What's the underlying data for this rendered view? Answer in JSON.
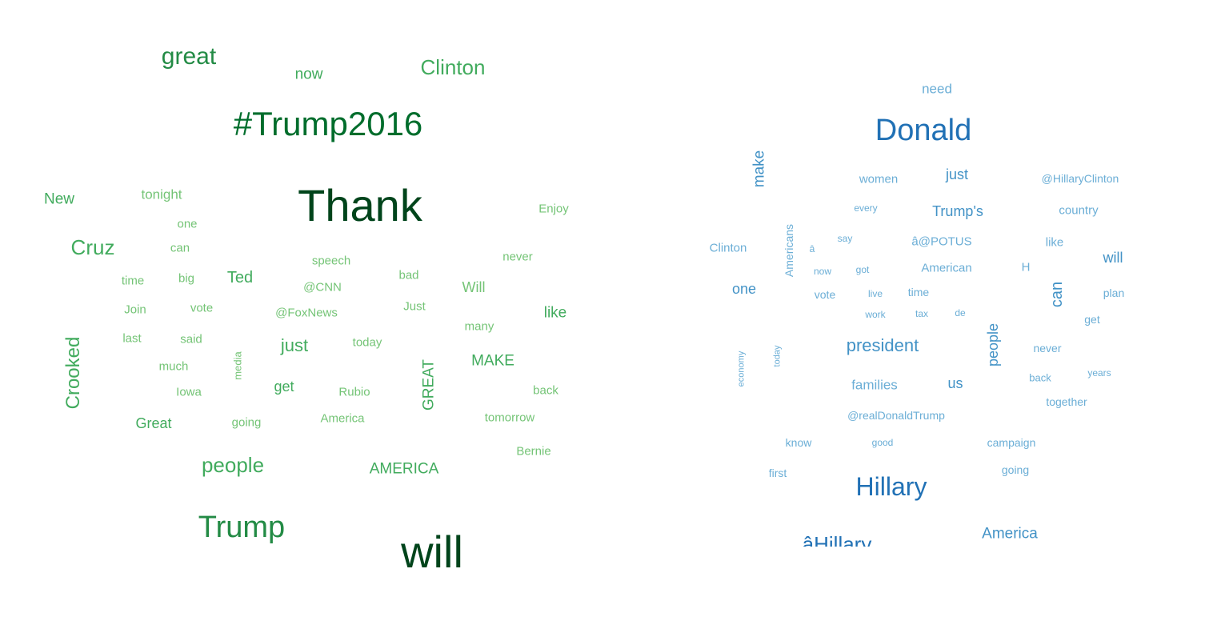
{
  "clouds": [
    {
      "name": "left",
      "words": [
        {
          "text": "great",
          "color": "#238b45"
        },
        {
          "text": "now",
          "color": "#41ab5d"
        },
        {
          "text": "Clinton",
          "color": "#41ab5d"
        },
        {
          "text": "#Trump2016",
          "color": "#006d2c"
        },
        {
          "text": "New",
          "color": "#41ab5d"
        },
        {
          "text": "tonight",
          "color": "#74c476"
        },
        {
          "text": "Thank",
          "color": "#00441b"
        },
        {
          "text": "Enjoy",
          "color": "#74c476"
        },
        {
          "text": "one",
          "color": "#74c476"
        },
        {
          "text": "Cruz",
          "color": "#41ab5d"
        },
        {
          "text": "can",
          "color": "#74c476"
        },
        {
          "text": "speech",
          "color": "#74c476"
        },
        {
          "text": "never",
          "color": "#74c476"
        },
        {
          "text": "time",
          "color": "#74c476"
        },
        {
          "text": "big",
          "color": "#74c476"
        },
        {
          "text": "Ted",
          "color": "#41ab5d"
        },
        {
          "text": "bad",
          "color": "#74c476"
        },
        {
          "text": "@CNN",
          "color": "#74c476"
        },
        {
          "text": "Will",
          "color": "#74c476"
        },
        {
          "text": "Join",
          "color": "#74c476"
        },
        {
          "text": "vote",
          "color": "#74c476"
        },
        {
          "text": "@FoxNews",
          "color": "#74c476"
        },
        {
          "text": "Just",
          "color": "#74c476"
        },
        {
          "text": "like",
          "color": "#41ab5d"
        },
        {
          "text": "many",
          "color": "#74c476"
        },
        {
          "text": "last",
          "color": "#74c476"
        },
        {
          "text": "said",
          "color": "#74c476"
        },
        {
          "text": "just",
          "color": "#41ab5d"
        },
        {
          "text": "today",
          "color": "#74c476"
        },
        {
          "text": "Crooked",
          "color": "#41ab5d"
        },
        {
          "text": "media",
          "color": "#74c476"
        },
        {
          "text": "much",
          "color": "#74c476"
        },
        {
          "text": "MAKE",
          "color": "#41ab5d"
        },
        {
          "text": "GREAT",
          "color": "#41ab5d"
        },
        {
          "text": "get",
          "color": "#41ab5d"
        },
        {
          "text": "Iowa",
          "color": "#74c476"
        },
        {
          "text": "Rubio",
          "color": "#74c476"
        },
        {
          "text": "back",
          "color": "#74c476"
        },
        {
          "text": "Great",
          "color": "#41ab5d"
        },
        {
          "text": "going",
          "color": "#74c476"
        },
        {
          "text": "America",
          "color": "#74c476"
        },
        {
          "text": "tomorrow",
          "color": "#74c476"
        },
        {
          "text": "Bernie",
          "color": "#74c476"
        },
        {
          "text": "people",
          "color": "#41ab5d"
        },
        {
          "text": "AMERICA",
          "color": "#41ab5d"
        },
        {
          "text": "Trump",
          "color": "#238b45"
        },
        {
          "text": "will",
          "color": "#00441b"
        }
      ]
    },
    {
      "name": "right",
      "words": [
        {
          "text": "need",
          "color": "#6baed6"
        },
        {
          "text": "Donald",
          "color": "#2171b5"
        },
        {
          "text": "make",
          "color": "#4292c6"
        },
        {
          "text": "women",
          "color": "#6baed6"
        },
        {
          "text": "just",
          "color": "#4292c6"
        },
        {
          "text": "@HillaryClinton",
          "color": "#6baed6"
        },
        {
          "text": "every",
          "color": "#6baed6"
        },
        {
          "text": "Trump's",
          "color": "#4292c6"
        },
        {
          "text": "country",
          "color": "#6baed6"
        },
        {
          "text": "Americans",
          "color": "#6baed6"
        },
        {
          "text": "say",
          "color": "#6baed6"
        },
        {
          "text": "â",
          "color": "#6baed6"
        },
        {
          "text": "â@POTUS",
          "color": "#6baed6"
        },
        {
          "text": "like",
          "color": "#6baed6"
        },
        {
          "text": "Clinton",
          "color": "#6baed6"
        },
        {
          "text": "will",
          "color": "#4292c6"
        },
        {
          "text": "now",
          "color": "#6baed6"
        },
        {
          "text": "got",
          "color": "#6baed6"
        },
        {
          "text": "American",
          "color": "#6baed6"
        },
        {
          "text": "H",
          "color": "#6baed6"
        },
        {
          "text": "one",
          "color": "#4292c6"
        },
        {
          "text": "can",
          "color": "#4292c6"
        },
        {
          "text": "vote",
          "color": "#6baed6"
        },
        {
          "text": "live",
          "color": "#6baed6"
        },
        {
          "text": "time",
          "color": "#6baed6"
        },
        {
          "text": "plan",
          "color": "#6baed6"
        },
        {
          "text": "work",
          "color": "#6baed6"
        },
        {
          "text": "tax",
          "color": "#6baed6"
        },
        {
          "text": "de",
          "color": "#6baed6"
        },
        {
          "text": "get",
          "color": "#6baed6"
        },
        {
          "text": "people",
          "color": "#4292c6"
        },
        {
          "text": "president",
          "color": "#4292c6"
        },
        {
          "text": "never",
          "color": "#6baed6"
        },
        {
          "text": "economy",
          "color": "#6baed6"
        },
        {
          "text": "today",
          "color": "#6baed6"
        },
        {
          "text": "years",
          "color": "#6baed6"
        },
        {
          "text": "families",
          "color": "#6baed6"
        },
        {
          "text": "us",
          "color": "#4292c6"
        },
        {
          "text": "back",
          "color": "#6baed6"
        },
        {
          "text": "together",
          "color": "#6baed6"
        },
        {
          "text": "@realDonaldTrump",
          "color": "#6baed6"
        },
        {
          "text": "know",
          "color": "#6baed6"
        },
        {
          "text": "good",
          "color": "#6baed6"
        },
        {
          "text": "campaign",
          "color": "#6baed6"
        },
        {
          "text": "first",
          "color": "#6baed6"
        },
        {
          "text": "going",
          "color": "#6baed6"
        },
        {
          "text": "Hillary",
          "color": "#2171b5"
        },
        {
          "text": "America",
          "color": "#4292c6"
        },
        {
          "text": "âHillary",
          "color": "#2171b5"
        }
      ]
    }
  ]
}
